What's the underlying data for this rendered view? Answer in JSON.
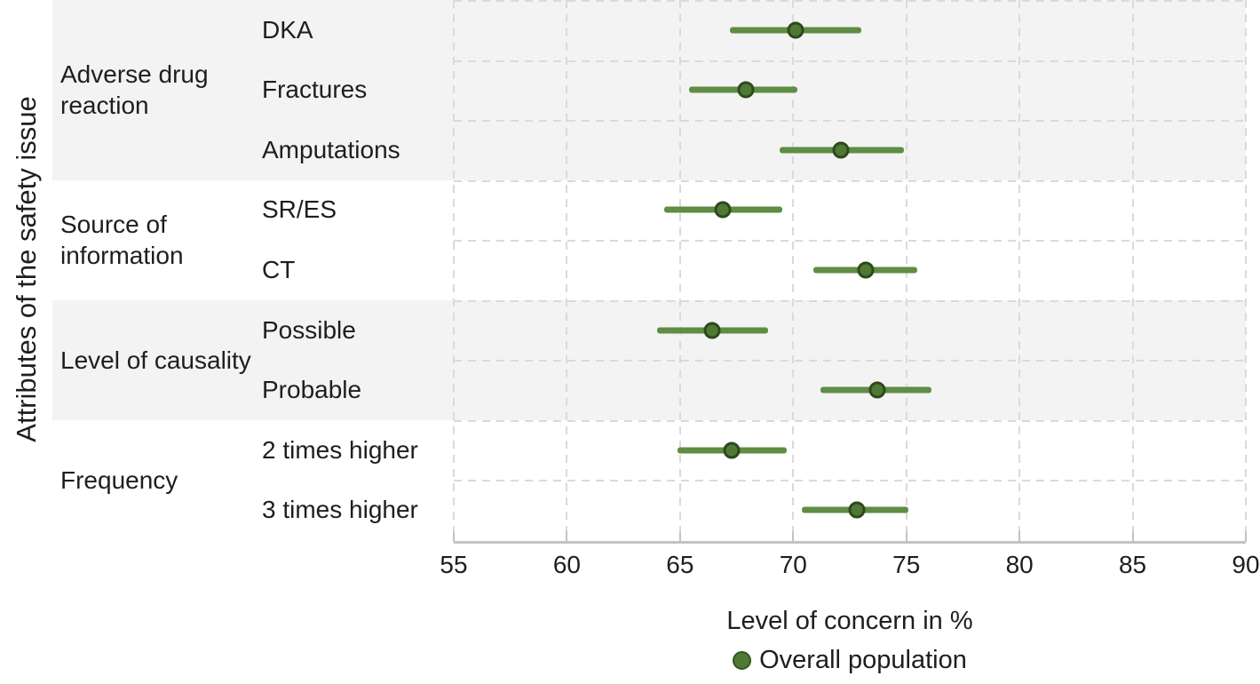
{
  "y_axis_title": "Attributes of the safety issue",
  "x_axis_title": "Level of concern in %",
  "legend": {
    "label": "Overall population",
    "marker": "circle-icon"
  },
  "colors": {
    "band_stripe": "#f4f3f3",
    "gridline": "#dadada",
    "axis": "#c3c3c3",
    "ci_bar": "#5f8d44",
    "marker_fill": "#4e7a35",
    "marker_ring": "#2d491d",
    "text": "#1e1e1e"
  },
  "chart_data": {
    "type": "scatter",
    "subtype": "forest-plot-dot-with-ci",
    "title": "",
    "xlabel": "Level of concern in %",
    "ylabel": "Attributes of the safety issue",
    "xlim": [
      55,
      90
    ],
    "x_ticks": [
      55,
      60,
      65,
      70,
      75,
      80,
      85,
      90
    ],
    "grid": "dashed-both-axes",
    "legend_position": "bottom-center",
    "series_name": "Overall population",
    "groups": [
      {
        "label": "Adverse drug reaction",
        "striped": true,
        "rows": [
          {
            "label": "DKA",
            "value": 70.1,
            "ci_low": 67.2,
            "ci_high": 73.0
          },
          {
            "label": "Fractures",
            "value": 67.9,
            "ci_low": 65.4,
            "ci_high": 70.2
          },
          {
            "label": "Amputations",
            "value": 72.1,
            "ci_low": 69.4,
            "ci_high": 74.9
          }
        ]
      },
      {
        "label": "Source of information",
        "striped": false,
        "rows": [
          {
            "label": "SR/ES",
            "value": 66.9,
            "ci_low": 64.3,
            "ci_high": 69.5
          },
          {
            "label": "CT",
            "value": 73.2,
            "ci_low": 70.9,
            "ci_high": 75.5
          }
        ]
      },
      {
        "label": "Level of causality",
        "striped": true,
        "rows": [
          {
            "label": "Possible",
            "value": 66.4,
            "ci_low": 64.0,
            "ci_high": 68.9
          },
          {
            "label": "Probable",
            "value": 73.7,
            "ci_low": 71.2,
            "ci_high": 76.1
          }
        ]
      },
      {
        "label": "Frequency",
        "striped": false,
        "rows": [
          {
            "label": "2 times higher",
            "value": 67.3,
            "ci_low": 64.9,
            "ci_high": 69.7
          },
          {
            "label": "3 times higher",
            "value": 72.8,
            "ci_low": 70.4,
            "ci_high": 75.1
          }
        ]
      }
    ]
  }
}
